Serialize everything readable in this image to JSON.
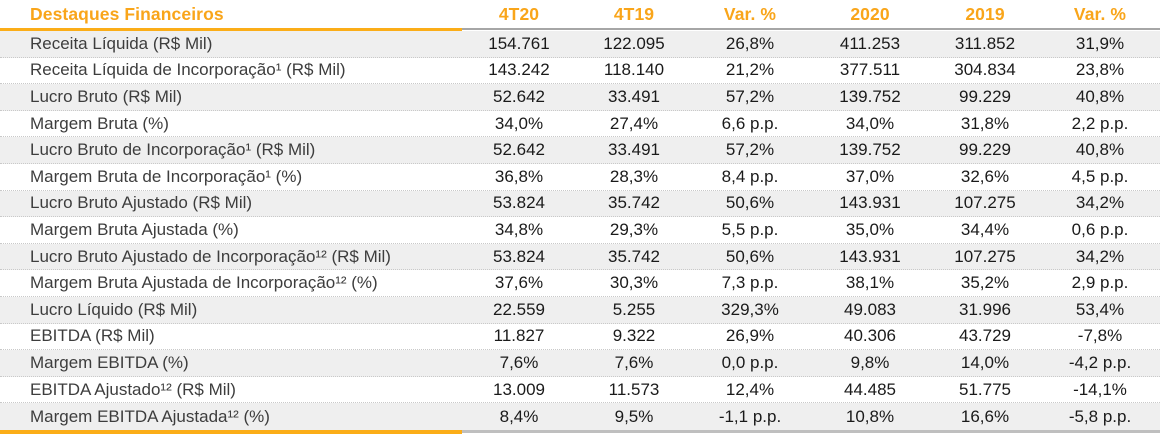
{
  "table": {
    "title": "Destaques Financeiros",
    "columns": [
      "4T20",
      "4T19",
      "Var. %",
      "2020",
      "2019",
      "Var. %"
    ],
    "rows": [
      {
        "label": "Receita Líquida (R$ Mil)",
        "values": [
          "154.761",
          "122.095",
          "26,8%",
          "411.253",
          "311.852",
          "31,9%"
        ]
      },
      {
        "label": "Receita Líquida de Incorporação¹ (R$ Mil)",
        "values": [
          "143.242",
          "118.140",
          "21,2%",
          "377.511",
          "304.834",
          "23,8%"
        ]
      },
      {
        "label": "Lucro Bruto (R$ Mil)",
        "values": [
          "52.642",
          "33.491",
          "57,2%",
          "139.752",
          "99.229",
          "40,8%"
        ]
      },
      {
        "label": "Margem Bruta (%)",
        "values": [
          "34,0%",
          "27,4%",
          "6,6 p.p.",
          "34,0%",
          "31,8%",
          "2,2 p.p."
        ]
      },
      {
        "label": "Lucro Bruto de Incorporação¹ (R$ Mil)",
        "values": [
          "52.642",
          "33.491",
          "57,2%",
          "139.752",
          "99.229",
          "40,8%"
        ]
      },
      {
        "label": "Margem Bruta de Incorporação¹ (%)",
        "values": [
          "36,8%",
          "28,3%",
          "8,4 p.p.",
          "37,0%",
          "32,6%",
          "4,5 p.p."
        ]
      },
      {
        "label": "Lucro Bruto Ajustado (R$ Mil)",
        "values": [
          "53.824",
          "35.742",
          "50,6%",
          "143.931",
          "107.275",
          "34,2%"
        ]
      },
      {
        "label": "Margem Bruta Ajustada (%)",
        "values": [
          "34,8%",
          "29,3%",
          "5,5 p.p.",
          "35,0%",
          "34,4%",
          "0,6 p.p."
        ]
      },
      {
        "label": "Lucro Bruto Ajustado de Incorporação¹² (R$ Mil)",
        "values": [
          "53.824",
          "35.742",
          "50,6%",
          "143.931",
          "107.275",
          "34,2%"
        ]
      },
      {
        "label": "Margem Bruta Ajustada de Incorporação¹² (%)",
        "values": [
          "37,6%",
          "30,3%",
          "7,3 p.p.",
          "38,1%",
          "35,2%",
          "2,9 p.p."
        ]
      },
      {
        "label": "Lucro Líquido (R$ Mil)",
        "values": [
          "22.559",
          "5.255",
          "329,3%",
          "49.083",
          "31.996",
          "53,4%"
        ]
      },
      {
        "label": "EBITDA (R$ Mil)",
        "values": [
          "11.827",
          "9.322",
          "26,9%",
          "40.306",
          "43.729",
          "-7,8%"
        ]
      },
      {
        "label": "Margem EBITDA (%)",
        "values": [
          "7,6%",
          "7,6%",
          "0,0 p.p.",
          "9,8%",
          "14,0%",
          "-4,2 p.p."
        ]
      },
      {
        "label": "EBITDA Ajustado¹² (R$ Mil)",
        "values": [
          "13.009",
          "11.573",
          "12,4%",
          "44.485",
          "51.775",
          "-14,1%"
        ]
      },
      {
        "label": "Margem EBITDA Ajustada¹² (%)",
        "values": [
          "8,4%",
          "9,5%",
          "-1,1 p.p.",
          "10,8%",
          "16,6%",
          "-5,8 p.p."
        ]
      }
    ],
    "colors": {
      "accent_orange": "#F9A51A",
      "rule_orange": "#FBAD18",
      "rule_gray": "#A6A6A6",
      "stripe_gray": "#EFEFEF",
      "label_text": "#3D3D3D",
      "value_text": "#1A1A1A"
    }
  }
}
